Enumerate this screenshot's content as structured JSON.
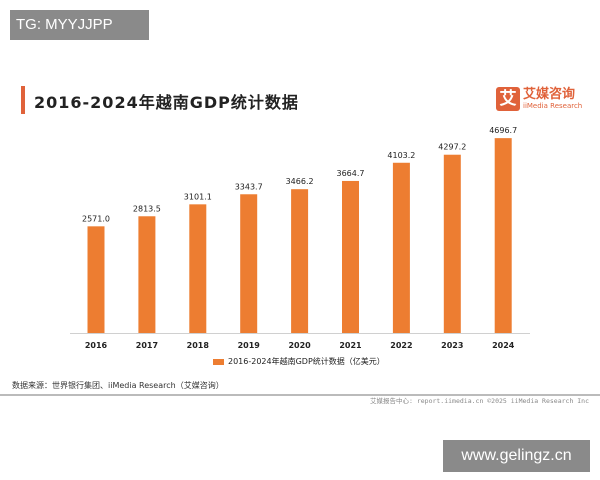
{
  "watermark_top": "TG: MYYJJPP",
  "watermark_bottom": "www.gelingz.cn",
  "logo": {
    "mark": "艾",
    "cn": "艾媒咨询",
    "en": "iiMedia Research"
  },
  "source": "数据来源：世界银行集团、iiMedia Research（艾媒咨询）",
  "footer": "艾媒报告中心: report.iimedia.cn  ©2025  iiMedia Research Inc",
  "chart_data": {
    "type": "bar",
    "title": "2016-2024年越南GDP统计数据",
    "categories": [
      "2016",
      "2017",
      "2018",
      "2019",
      "2020",
      "2021",
      "2022",
      "2023",
      "2024"
    ],
    "series": [
      {
        "name": "2016-2024年越南GDP统计数据（亿美元）",
        "values": [
          2571.0,
          2813.5,
          3101.1,
          3343.7,
          3466.2,
          3664.7,
          4103.2,
          4297.2,
          4696.7
        ],
        "labels": [
          "2571.0",
          "2813.5",
          "3101.1",
          "3343.7",
          "3466.2",
          "3664.7",
          "4103.2",
          "4297.2",
          "4696.7"
        ],
        "color": "#ed7d31"
      }
    ],
    "ylim": [
      0,
      4700
    ],
    "grid": false,
    "legend": "bottom"
  }
}
